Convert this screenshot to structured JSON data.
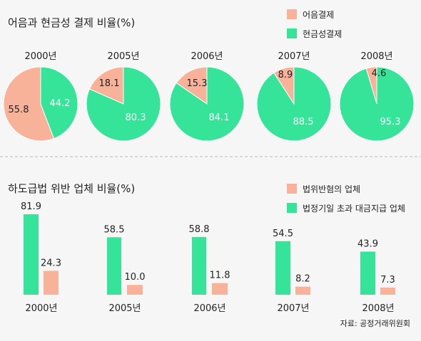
{
  "colors": {
    "salmon": "#f9b29a",
    "green": "#35e498",
    "background": "#f6f6f6",
    "text": "#222222",
    "divider": "#bbbbbb"
  },
  "chart_data": [
    {
      "type": "pie",
      "title": "어음과 현금성 결제 비율(%)",
      "legend": [
        {
          "label": "어음결제",
          "color": "#f9b29a"
        },
        {
          "label": "현금성결제",
          "color": "#35e498"
        }
      ],
      "legend_position": "top-right",
      "pies": [
        {
          "year": "2000년",
          "slices": [
            {
              "series": "어음결제",
              "value": 55.8,
              "label": "55.8"
            },
            {
              "series": "현금성결제",
              "value": 44.2,
              "label": "44.2"
            }
          ]
        },
        {
          "year": "2005년",
          "slices": [
            {
              "series": "어음결제",
              "value": 18.1,
              "label": "18.1"
            },
            {
              "series": "현금성결제",
              "value": 80.3,
              "label": "80.3"
            }
          ]
        },
        {
          "year": "2006년",
          "slices": [
            {
              "series": "어음결제",
              "value": 15.3,
              "label": "15.3"
            },
            {
              "series": "현금성결제",
              "value": 84.1,
              "label": "84.1"
            }
          ]
        },
        {
          "year": "2007년",
          "slices": [
            {
              "series": "어음결제",
              "value": 8.9,
              "label": "8.9"
            },
            {
              "series": "현금성결제",
              "value": 88.5,
              "label": "88.5"
            }
          ]
        },
        {
          "year": "2008년",
          "slices": [
            {
              "series": "어음결제",
              "value": 4.6,
              "label": "4.6"
            },
            {
              "series": "현금성결제",
              "value": 95.3,
              "label": "95.3"
            }
          ]
        }
      ]
    },
    {
      "type": "bar",
      "title": "하도급법 위반 업체 비율(%)",
      "categories": [
        "2000년",
        "2005년",
        "2006년",
        "2007년",
        "2008년"
      ],
      "series": [
        {
          "name": "법정기일 초과 대금지급 업체",
          "color": "#35e498",
          "values": [
            81.9,
            58.5,
            58.8,
            54.5,
            43.9
          ],
          "labels": [
            "81.9",
            "58.5",
            "58.8",
            "54.5",
            "43.9"
          ]
        },
        {
          "name": "법위반혐의 업체",
          "color": "#f9b29a",
          "values": [
            24.3,
            10.0,
            11.8,
            8.2,
            7.3
          ],
          "labels": [
            "24.3",
            "10.0",
            "11.8",
            "8.2",
            "7.3"
          ]
        }
      ],
      "legend_order": [
        "법위반혐의 업체",
        "법정기일 초과 대금지급 업체"
      ],
      "legend_position": "top-right",
      "ylim": [
        0,
        100
      ]
    }
  ],
  "source": "자료: 공정거래위원회"
}
